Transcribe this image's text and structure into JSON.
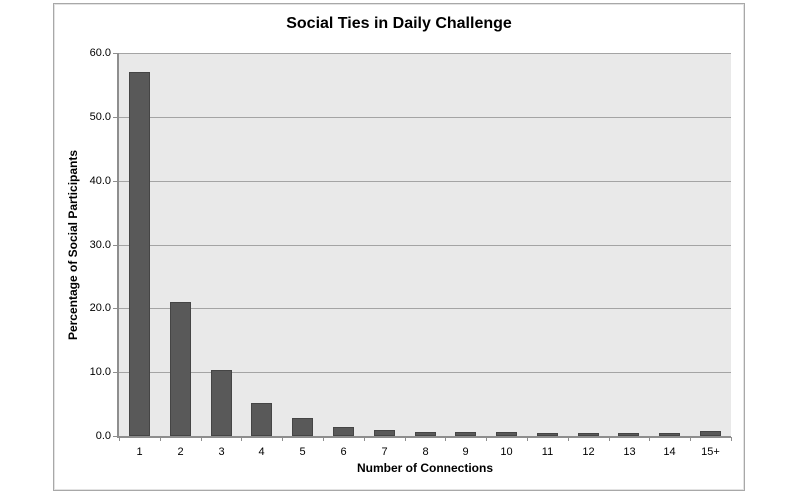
{
  "chart_data": {
    "type": "bar",
    "title": "Social Ties in Daily Challenge",
    "xlabel": "Number of Connections",
    "ylabel": "Percentage of Social Participants",
    "categories": [
      "1",
      "2",
      "3",
      "4",
      "5",
      "6",
      "7",
      "8",
      "9",
      "10",
      "11",
      "12",
      "13",
      "14",
      "15+"
    ],
    "values": [
      57.0,
      21.0,
      10.3,
      5.1,
      2.8,
      1.4,
      1.0,
      0.6,
      0.6,
      0.6,
      0.4,
      0.4,
      0.4,
      0.4,
      0.8
    ],
    "ylim": [
      0,
      60
    ],
    "ytick_interval": 10,
    "ytick_labels": [
      "0.0",
      "10.0",
      "20.0",
      "30.0",
      "40.0",
      "50.0",
      "60.0"
    ],
    "grid": true,
    "legend_position": "none",
    "colors": {
      "bar_fill": "#595959",
      "bar_border": "#454545",
      "plot_bg": "#e9e9e9",
      "gridline": "#a4a4a4",
      "axis_line": "#8e8e8e",
      "frame_border": "#a8a8a8",
      "text": "#000000"
    }
  }
}
